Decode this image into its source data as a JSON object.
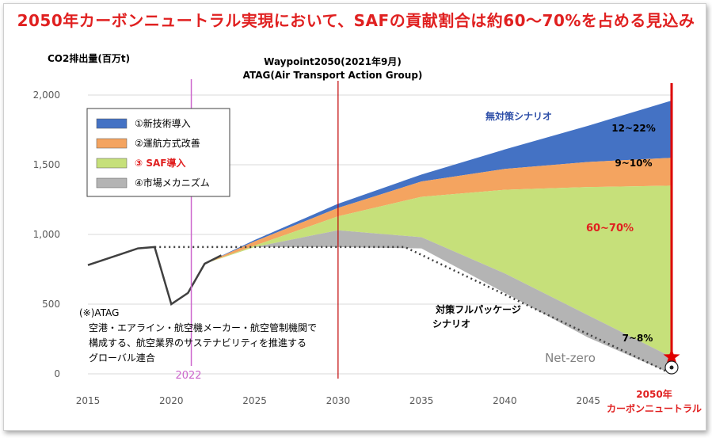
{
  "title": "2050年カーボンニュートラル実現において、SAFの貢献割合は約60～70%を占める見込み",
  "chart_data": {
    "type": "area",
    "ylabel": "CO2排出量(百万t)",
    "xlim": [
      2015,
      2050
    ],
    "ylim": [
      0,
      2000
    ],
    "x_ticks": [
      "2015",
      "2020",
      "2025",
      "2030",
      "2035",
      "2040",
      "2045"
    ],
    "y_ticks": [
      "2,000",
      "1,500",
      "1,000",
      "500",
      "0"
    ],
    "colors": {
      "new_tech": "#4472c4",
      "operations": "#f4a460",
      "saf": "#c6e07a",
      "market": "#b4b4b4",
      "history_line": "#404040",
      "cap_line": "#404040",
      "waypoint_line": "#c00000",
      "marker_2022": "#cc66cc",
      "target_line": "#dd0000"
    },
    "history": {
      "x": [
        2015,
        2016,
        2017,
        2018,
        2019,
        2020,
        2021,
        2022,
        2023
      ],
      "y": [
        780,
        820,
        860,
        900,
        910,
        500,
        580,
        790,
        850
      ]
    },
    "bau_scenario": {
      "x": [
        2022,
        2025,
        2030,
        2035,
        2040,
        2045,
        2050
      ],
      "y": [
        790,
        960,
        1220,
        1430,
        1610,
        1780,
        1960
      ]
    },
    "series": [
      {
        "name": "①新技術導入",
        "x": [
          2022,
          2025,
          2030,
          2035,
          2040,
          2045,
          2050
        ],
        "upper": [
          790,
          960,
          1220,
          1430,
          1610,
          1780,
          1960
        ],
        "lower": [
          790,
          950,
          1190,
          1380,
          1470,
          1520,
          1550
        ]
      },
      {
        "name": "②運航方式改善",
        "x": [
          2022,
          2025,
          2030,
          2035,
          2040,
          2045,
          2050
        ],
        "upper": [
          790,
          950,
          1190,
          1380,
          1470,
          1520,
          1550
        ],
        "lower": [
          790,
          920,
          1130,
          1270,
          1320,
          1340,
          1350
        ]
      },
      {
        "name": "③ SAF導入",
        "x": [
          2022,
          2025,
          2030,
          2035,
          2040,
          2045,
          2050
        ],
        "upper": [
          790,
          920,
          1130,
          1270,
          1320,
          1340,
          1350
        ],
        "lower": [
          790,
          910,
          1030,
          980,
          720,
          420,
          120
        ]
      },
      {
        "name": "④市場メカニズム",
        "x": [
          2022,
          2025,
          2030,
          2035,
          2040,
          2045,
          2050
        ],
        "upper": [
          790,
          910,
          1030,
          980,
          720,
          420,
          120
        ],
        "lower": [
          790,
          910,
          910,
          900,
          580,
          260,
          0
        ]
      }
    ],
    "cap_2019": {
      "x": [
        2019,
        2034,
        2050
      ],
      "y": [
        910,
        910,
        0
      ]
    },
    "vertical_lines": {
      "marker_2022": 2021.2,
      "waypoint": 2030,
      "target": 2050
    },
    "legend": [
      "①新技術導入",
      "②運航方式改善",
      "③ SAF導入",
      "④市場メカニズム"
    ],
    "annotations": {
      "waypoint_line1": "Waypoint2050(2021年9月)",
      "waypoint_line2": "ATAG(Air Transport Action Group)",
      "bau_label": "無対策シナリオ",
      "pct_new_tech": "12~22%",
      "pct_operations": "9~10%",
      "pct_saf": "60~70%",
      "pct_market": "7~8%",
      "full_package_line1": "対策フルパッケージ",
      "full_package_line2": "シナリオ",
      "net_zero": "Net-zero",
      "year_2022": "2022",
      "target_line1": "2050年",
      "target_line2": "カーボンニュートラル",
      "atag_note": [
        "(※)ATAG",
        "空港・エアライン・航空機メーカー・航空管制機関で",
        "構成する、航空業界のサステナビリティを推進する",
        "グローバル連合"
      ]
    }
  }
}
